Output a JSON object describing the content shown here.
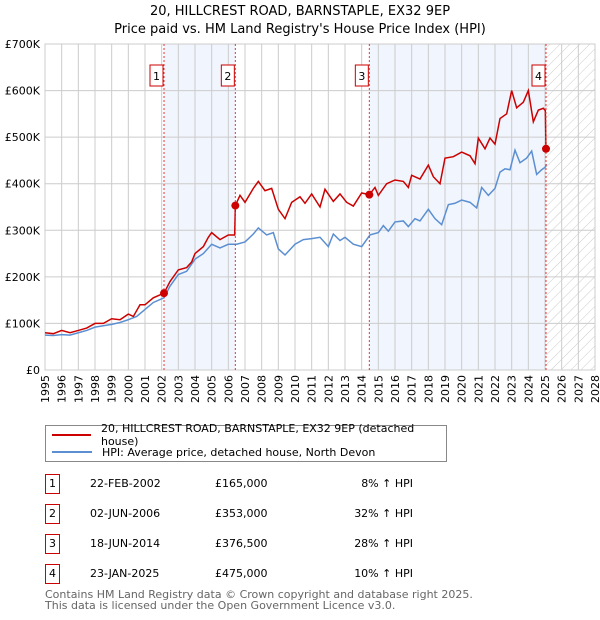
{
  "chart_data": {
    "type": "line",
    "title": "20, HILLCREST ROAD, BARNSTAPLE, EX32 9EP",
    "subtitle": "Price paid vs. HM Land Registry's House Price Index (HPI)",
    "xlim": [
      1995,
      2028
    ],
    "ylim": [
      0,
      700000
    ],
    "x_ticks": [
      "1995",
      "1996",
      "1997",
      "1998",
      "1999",
      "2000",
      "2001",
      "2002",
      "2003",
      "2004",
      "2005",
      "2006",
      "2007",
      "2008",
      "2009",
      "2010",
      "2011",
      "2012",
      "2013",
      "2014",
      "2015",
      "2016",
      "2017",
      "2018",
      "2019",
      "2020",
      "2021",
      "2022",
      "2023",
      "2024",
      "2025",
      "2026",
      "2027",
      "2028"
    ],
    "y_ticks": [
      {
        "v": 0,
        "label": "£0"
      },
      {
        "v": 100000,
        "label": "£100K"
      },
      {
        "v": 200000,
        "label": "£200K"
      },
      {
        "v": 300000,
        "label": "£300K"
      },
      {
        "v": 400000,
        "label": "£400K"
      },
      {
        "v": 500000,
        "label": "£500K"
      },
      {
        "v": 600000,
        "label": "£600K"
      },
      {
        "v": 700000,
        "label": "£700K"
      }
    ],
    "grid": true,
    "legend_placement": "below",
    "series": [
      {
        "name": "20, HILLCREST ROAD, BARNSTAPLE, EX32 9EP (detached house)",
        "color": "#cc0000",
        "points": [
          [
            1995,
            80
          ],
          [
            1995.5,
            78
          ],
          [
            1996,
            85
          ],
          [
            1996.5,
            80
          ],
          [
            1997,
            85
          ],
          [
            1997.5,
            90
          ],
          [
            1998,
            100
          ],
          [
            1998.5,
            100
          ],
          [
            1999,
            110
          ],
          [
            1999.5,
            108
          ],
          [
            2000,
            120
          ],
          [
            2000.3,
            115
          ],
          [
            2000.7,
            140
          ],
          [
            2001,
            140
          ],
          [
            2001.5,
            155
          ],
          [
            2002.14,
            165
          ],
          [
            2002.5,
            190
          ],
          [
            2003,
            215
          ],
          [
            2003.5,
            220
          ],
          [
            2003.8,
            232
          ],
          [
            2004,
            250
          ],
          [
            2004.5,
            265
          ],
          [
            2004.8,
            285
          ],
          [
            2005,
            295
          ],
          [
            2005.5,
            280
          ],
          [
            2006,
            290
          ],
          [
            2006.38,
            290
          ],
          [
            2006.42,
            353
          ],
          [
            2006.7,
            375
          ],
          [
            2007,
            360
          ],
          [
            2007.5,
            390
          ],
          [
            2007.8,
            405
          ],
          [
            2008.2,
            385
          ],
          [
            2008.6,
            390
          ],
          [
            2009,
            345
          ],
          [
            2009.4,
            325
          ],
          [
            2009.8,
            360
          ],
          [
            2010.3,
            372
          ],
          [
            2010.6,
            358
          ],
          [
            2011,
            378
          ],
          [
            2011.5,
            350
          ],
          [
            2011.8,
            388
          ],
          [
            2012.3,
            362
          ],
          [
            2012.7,
            378
          ],
          [
            2013.1,
            360
          ],
          [
            2013.5,
            352
          ],
          [
            2014,
            380
          ],
          [
            2014.46,
            376.5
          ],
          [
            2014.8,
            392
          ],
          [
            2015,
            375
          ],
          [
            2015.5,
            400
          ],
          [
            2016,
            408
          ],
          [
            2016.5,
            405
          ],
          [
            2016.8,
            392
          ],
          [
            2017,
            418
          ],
          [
            2017.5,
            410
          ],
          [
            2018,
            440
          ],
          [
            2018.3,
            415
          ],
          [
            2018.7,
            400
          ],
          [
            2019,
            455
          ],
          [
            2019.5,
            458
          ],
          [
            2020,
            468
          ],
          [
            2020.5,
            460
          ],
          [
            2020.8,
            443
          ],
          [
            2021,
            498
          ],
          [
            2021.4,
            475
          ],
          [
            2021.7,
            498
          ],
          [
            2022,
            485
          ],
          [
            2022.3,
            540
          ],
          [
            2022.7,
            550
          ],
          [
            2023,
            600
          ],
          [
            2023.3,
            563
          ],
          [
            2023.7,
            575
          ],
          [
            2024,
            600
          ],
          [
            2024.3,
            533
          ],
          [
            2024.6,
            558
          ],
          [
            2024.9,
            562
          ],
          [
            2025.02,
            557
          ],
          [
            2025.06,
            475
          ]
        ]
      },
      {
        "name": "HPI: Average price, detached house, North Devon",
        "color": "#5b8fd1",
        "points": [
          [
            1995,
            75
          ],
          [
            1995.5,
            74
          ],
          [
            1996,
            76
          ],
          [
            1996.5,
            75
          ],
          [
            1997,
            80
          ],
          [
            1997.5,
            85
          ],
          [
            1998,
            92
          ],
          [
            1998.5,
            95
          ],
          [
            1999,
            98
          ],
          [
            1999.5,
            102
          ],
          [
            2000,
            108
          ],
          [
            2000.5,
            115
          ],
          [
            2001,
            130
          ],
          [
            2001.5,
            145
          ],
          [
            2002.14,
            155
          ],
          [
            2002.5,
            180
          ],
          [
            2003,
            205
          ],
          [
            2003.5,
            212
          ],
          [
            2004,
            238
          ],
          [
            2004.5,
            250
          ],
          [
            2005,
            270
          ],
          [
            2005.5,
            262
          ],
          [
            2006,
            270
          ],
          [
            2006.5,
            270
          ],
          [
            2007,
            275
          ],
          [
            2007.5,
            292
          ],
          [
            2007.8,
            305
          ],
          [
            2008.3,
            290
          ],
          [
            2008.7,
            295
          ],
          [
            2009,
            260
          ],
          [
            2009.4,
            247
          ],
          [
            2010,
            270
          ],
          [
            2010.5,
            280
          ],
          [
            2011,
            282
          ],
          [
            2011.5,
            285
          ],
          [
            2012,
            265
          ],
          [
            2012.3,
            292
          ],
          [
            2012.7,
            278
          ],
          [
            2013,
            285
          ],
          [
            2013.5,
            270
          ],
          [
            2014,
            265
          ],
          [
            2014.5,
            290
          ],
          [
            2015,
            295
          ],
          [
            2015.3,
            310
          ],
          [
            2015.6,
            298
          ],
          [
            2016,
            318
          ],
          [
            2016.5,
            320
          ],
          [
            2016.8,
            308
          ],
          [
            2017.2,
            325
          ],
          [
            2017.5,
            320
          ],
          [
            2018,
            345
          ],
          [
            2018.4,
            325
          ],
          [
            2018.8,
            312
          ],
          [
            2019.2,
            355
          ],
          [
            2019.6,
            358
          ],
          [
            2020,
            365
          ],
          [
            2020.5,
            360
          ],
          [
            2020.9,
            348
          ],
          [
            2021.2,
            392
          ],
          [
            2021.6,
            375
          ],
          [
            2022,
            390
          ],
          [
            2022.3,
            425
          ],
          [
            2022.6,
            432
          ],
          [
            2022.9,
            430
          ],
          [
            2023.2,
            472
          ],
          [
            2023.5,
            445
          ],
          [
            2023.9,
            455
          ],
          [
            2024.2,
            470
          ],
          [
            2024.5,
            420
          ],
          [
            2024.8,
            430
          ],
          [
            2025,
            435
          ],
          [
            2025.1,
            442
          ]
        ]
      }
    ],
    "sales": [
      {
        "id": "1",
        "x": 2002.14,
        "value": 165000
      },
      {
        "id": "2",
        "x": 2006.42,
        "value": 353000
      },
      {
        "id": "3",
        "x": 2014.46,
        "value": 376500
      },
      {
        "id": "4",
        "x": 2025.06,
        "value": 475000
      }
    ]
  },
  "legend": {
    "property": "20, HILLCREST ROAD, BARNSTAPLE, EX32 9EP (detached house)",
    "hpi": "HPI: Average price, detached house, North Devon"
  },
  "table": [
    {
      "id": "1",
      "date": "22-FEB-2002",
      "price": "£165,000",
      "hpi": "8% ↑ HPI"
    },
    {
      "id": "2",
      "date": "02-JUN-2006",
      "price": "£353,000",
      "hpi": "32% ↑ HPI"
    },
    {
      "id": "3",
      "date": "18-JUN-2014",
      "price": "£376,500",
      "hpi": "28% ↑ HPI"
    },
    {
      "id": "4",
      "date": "23-JAN-2025",
      "price": "£475,000",
      "hpi": "10% ↑ HPI"
    }
  ],
  "footer": {
    "line1": "Contains HM Land Registry data © Crown copyright and database right 2025.",
    "line2": "This data is licensed under the Open Government Licence v3.0."
  }
}
